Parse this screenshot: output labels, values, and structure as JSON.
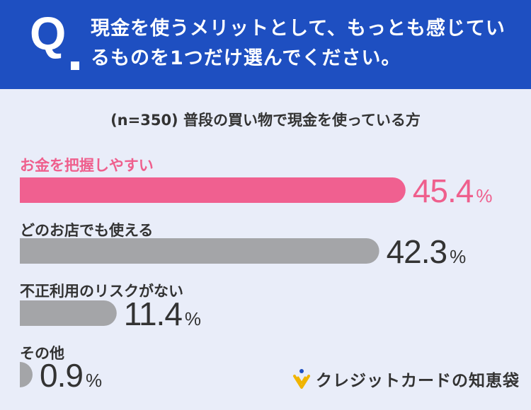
{
  "header": {
    "q_mark": "Q",
    "question": "現金を使うメリットとして、もっとも感じているものを1つだけ選んでください。"
  },
  "chart_data": {
    "type": "bar",
    "orientation": "horizontal",
    "subtitle": "(n=350) 普段の買い物で現金を使っている方",
    "categories": [
      "お金を把握しやすい",
      "どのお店でも使える",
      "不正利用のリスクがない",
      "その他"
    ],
    "values": [
      45.4,
      42.3,
      11.4,
      0.9
    ],
    "value_labels": [
      "45.4",
      "42.3",
      "11.4",
      "0.9"
    ],
    "unit": "%",
    "highlight_index": 0,
    "colors": {
      "highlight": "#f06090",
      "default": "#a4a5a8",
      "highlight_text": "#ef5f8d",
      "default_text": "#333333"
    },
    "xlim": [
      0,
      100
    ]
  },
  "brand": {
    "name": "クレジットカードの知恵袋"
  },
  "colors": {
    "header_bg": "#1e4fc1",
    "page_bg": "#e9edf9",
    "brand_yellow": "#f0b400"
  }
}
